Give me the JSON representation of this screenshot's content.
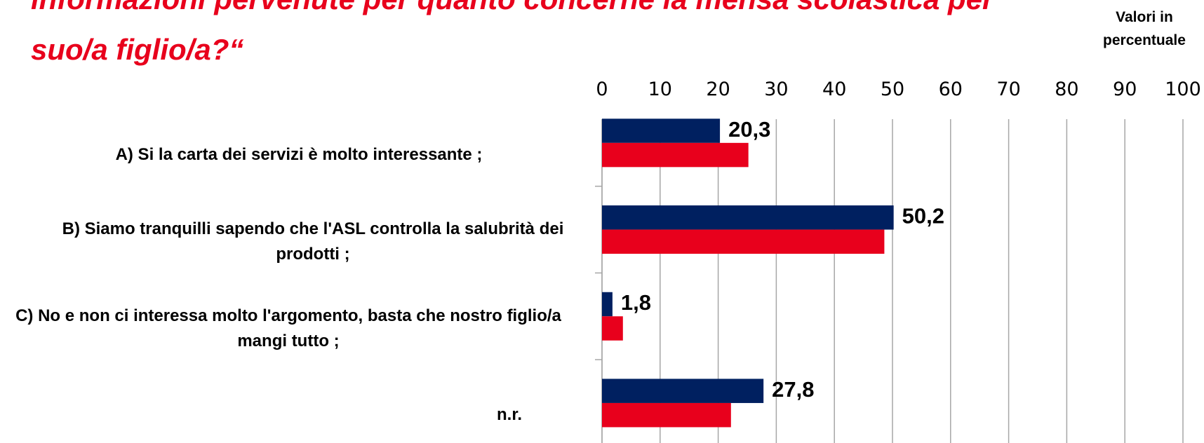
{
  "chart_data": {
    "type": "bar",
    "orientation": "horizontal",
    "title": [
      "informazioni pervenute per quanto concerne la mensa scolastica per",
      "suo/a figlio/a?“"
    ],
    "annotation": "Valori in percentuale",
    "categories": [
      "A) Si la carta dei servizi è molto interessante ;",
      "B) Siamo tranquilli sapendo che l'ASL controlla la salubrità dei prodotti ;",
      "C) No e non ci interessa molto l'argomento, basta che nostro figlio/a mangi tutto ;",
      "n.r."
    ],
    "series": [
      {
        "color": "#002060",
        "values": [
          20.3,
          50.2,
          1.8,
          27.8
        ],
        "value_labels": [
          "20,3",
          "50,2",
          "1,8",
          "27,8"
        ]
      },
      {
        "color": "#e8001c",
        "values": [
          25.2,
          48.6,
          3.6,
          22.2
        ]
      }
    ],
    "xlim": [
      0,
      100
    ],
    "xticks": [
      0,
      10,
      20,
      30,
      40,
      50,
      60,
      70,
      80,
      90,
      100
    ],
    "grid": true
  }
}
